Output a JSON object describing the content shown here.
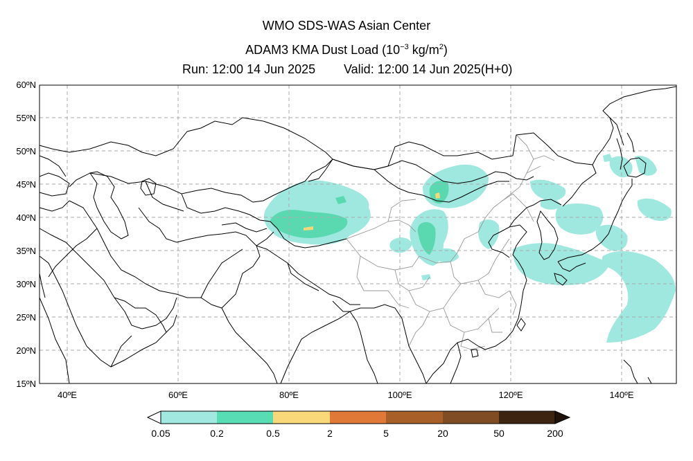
{
  "header": {
    "line1": "WMO SDS-WAS Asian Center",
    "line2_prefix": "ADAM3 KMA Dust Load (10",
    "line2_exp": "−3",
    "line2_mid": " kg/m",
    "line2_sq": "2",
    "line2_end": ")",
    "run": "Run: 12:00 14 Jun 2025",
    "valid": "Valid: 12:00 14 Jun 2025(H+0)"
  },
  "axes": {
    "lat_labels": [
      "60ºN",
      "55ºN",
      "50ºN",
      "45ºN",
      "40ºN",
      "35ºN",
      "30ºN",
      "25ºN",
      "20ºN",
      "15ºN"
    ],
    "lon_labels": [
      "40ºE",
      "60ºE",
      "80ºE",
      "100ºE",
      "120ºE",
      "140ºE"
    ],
    "lon_range": [
      35,
      150
    ],
    "lat_range": [
      15,
      60
    ]
  },
  "colorbar": {
    "labels": [
      "0.05",
      "0.2",
      "0.5",
      "2",
      "5",
      "20",
      "50",
      "200"
    ],
    "colors": [
      "#a0e8e0",
      "#58dcb4",
      "#f8d878",
      "#e07838",
      "#a86028",
      "#804c24",
      "#3c2410"
    ]
  },
  "dust_colors": {
    "low": "#9ee8df",
    "mid": "#5ad9b1",
    "high": "#f6d77a"
  }
}
